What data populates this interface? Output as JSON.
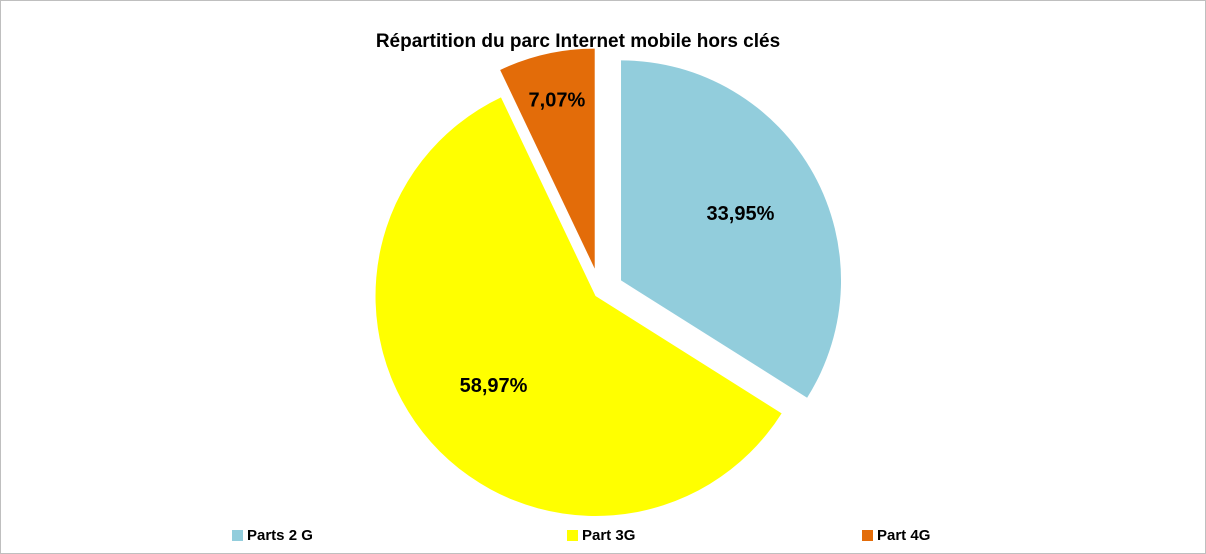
{
  "chart_data": {
    "type": "pie",
    "title": "Répartition du parc Internet mobile hors clés",
    "categories": [
      "Parts 2 G",
      "Part 3G",
      "Part 4G"
    ],
    "values": [
      33.95,
      58.97,
      7.07
    ],
    "value_labels": [
      "33,95%",
      "58,97%",
      "7,07%"
    ],
    "colors": [
      "#92cddc",
      "#ffff00",
      "#e36c09"
    ],
    "legend": "bottom"
  }
}
